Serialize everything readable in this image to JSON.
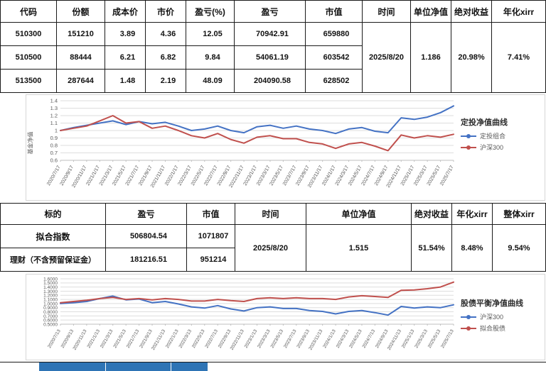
{
  "table1": {
    "headers": [
      "代码",
      "份额",
      "成本价",
      "市价",
      "盈亏(%)",
      "盈亏",
      "市值",
      "时间",
      "单位净值",
      "绝对收益",
      "年化xirr"
    ],
    "rows": [
      [
        "510300",
        "151210",
        "3.89",
        "4.36",
        "12.05",
        "70942.91",
        "659880"
      ],
      [
        "510500",
        "88444",
        "6.21",
        "6.82",
        "9.84",
        "54061.19",
        "603542"
      ],
      [
        "513500",
        "287644",
        "1.48",
        "2.19",
        "48.09",
        "204090.58",
        "628502"
      ]
    ],
    "date": "2025/8/20",
    "unit_nav": "1.186",
    "abs_return": "20.98%",
    "annual_xirr": "7.41%"
  },
  "table2": {
    "headers": [
      "标的",
      "盈亏",
      "市值",
      "时间",
      "单位净值",
      "绝对收益",
      "年化xirr",
      "整体xirr"
    ],
    "rows": [
      [
        "拟合指数",
        "506804.54",
        "1071807"
      ],
      [
        "理财（不含预留保证金）",
        "181216.51",
        "951214"
      ]
    ],
    "date": "2025/8/20",
    "unit_nav": "1.515",
    "abs_return": "51.54%",
    "annual_xirr": "8.48%",
    "overall_xirr": "9.54%"
  },
  "chart_data": [
    {
      "type": "line",
      "title": "定投净值曲线",
      "ylabel": "基金净值",
      "ylim": [
        0.6,
        1.4
      ],
      "yticks": [
        "1.4",
        "1.3",
        "1.2",
        "1.1",
        "1",
        "0.9",
        "0.8",
        "0.7",
        "0.6"
      ],
      "grid": "horizontal",
      "legend_position": "right",
      "x": [
        "2020/7/17",
        "2020/9/17",
        "2020/11/17",
        "2021/1/17",
        "2021/3/17",
        "2021/5/17",
        "2021/7/17",
        "2021/9/17",
        "2021/11/17",
        "2022/1/17",
        "2022/3/17",
        "2022/5/17",
        "2022/7/17",
        "2022/9/17",
        "2022/11/17",
        "2023/1/17",
        "2023/3/17",
        "2023/5/17",
        "2023/7/17",
        "2023/9/17",
        "2023/11/17",
        "2024/1/17",
        "2024/3/17",
        "2024/5/17",
        "2024/7/17",
        "2024/9/17",
        "2024/11/17",
        "2025/1/17",
        "2025/3/17",
        "2025/5/17",
        "2025/7/17"
      ],
      "series": [
        {
          "name": "定投组合",
          "color": "#4472C4",
          "values": [
            1.0,
            1.04,
            1.07,
            1.1,
            1.13,
            1.08,
            1.12,
            1.09,
            1.11,
            1.06,
            1.0,
            1.02,
            1.06,
            1.0,
            0.97,
            1.05,
            1.07,
            1.03,
            1.06,
            1.02,
            1.0,
            0.96,
            1.02,
            1.04,
            0.99,
            0.97,
            1.17,
            1.15,
            1.18,
            1.24,
            1.33
          ]
        },
        {
          "name": "沪深300",
          "color": "#C0504D",
          "values": [
            1.0,
            1.03,
            1.06,
            1.13,
            1.2,
            1.1,
            1.12,
            1.03,
            1.06,
            1.0,
            0.93,
            0.9,
            0.96,
            0.88,
            0.83,
            0.91,
            0.93,
            0.89,
            0.89,
            0.84,
            0.82,
            0.76,
            0.82,
            0.84,
            0.79,
            0.73,
            0.94,
            0.9,
            0.93,
            0.91,
            0.95
          ]
        }
      ]
    },
    {
      "type": "line",
      "title": "股债平衡净值曲线",
      "ylabel": "",
      "ylim": [
        0.5,
        1.6
      ],
      "yticks": [
        "1.6000",
        "1.5000",
        "1.4000",
        "1.3000",
        "1.2000",
        "1.1000",
        "1.0000",
        "0.9000",
        "0.8000",
        "0.7000",
        "0.6000",
        "0.5000"
      ],
      "grid": "horizontal",
      "legend_position": "right",
      "x": [
        "2020/7/13",
        "2020/9/13",
        "2020/11/13",
        "2021/1/13",
        "2021/3/13",
        "2021/5/13",
        "2021/7/13",
        "2021/9/13",
        "2021/11/13",
        "2022/1/13",
        "2022/3/13",
        "2022/5/13",
        "2022/7/13",
        "2022/9/13",
        "2022/11/13",
        "2023/1/13",
        "2023/3/13",
        "2023/5/13",
        "2023/7/13",
        "2023/9/13",
        "2023/11/13",
        "2024/1/13",
        "2024/3/13",
        "2024/5/13",
        "2024/7/13",
        "2024/9/13",
        "2024/11/13",
        "2025/1/13",
        "2025/3/13",
        "2025/5/13",
        "2025/7/13"
      ],
      "series": [
        {
          "name": "沪深300",
          "color": "#4472C4",
          "values": [
            1.0,
            1.02,
            1.05,
            1.12,
            1.18,
            1.09,
            1.11,
            1.02,
            1.05,
            0.99,
            0.92,
            0.89,
            0.95,
            0.87,
            0.82,
            0.9,
            0.92,
            0.88,
            0.88,
            0.83,
            0.81,
            0.75,
            0.81,
            0.83,
            0.78,
            0.72,
            0.93,
            0.89,
            0.92,
            0.9,
            0.97
          ]
        },
        {
          "name": "拟合股债",
          "color": "#C0504D",
          "values": [
            1.02,
            1.05,
            1.08,
            1.12,
            1.15,
            1.1,
            1.12,
            1.09,
            1.12,
            1.1,
            1.06,
            1.06,
            1.1,
            1.07,
            1.05,
            1.12,
            1.14,
            1.12,
            1.14,
            1.12,
            1.12,
            1.1,
            1.16,
            1.19,
            1.17,
            1.15,
            1.32,
            1.33,
            1.36,
            1.4,
            1.52
          ]
        }
      ]
    }
  ]
}
